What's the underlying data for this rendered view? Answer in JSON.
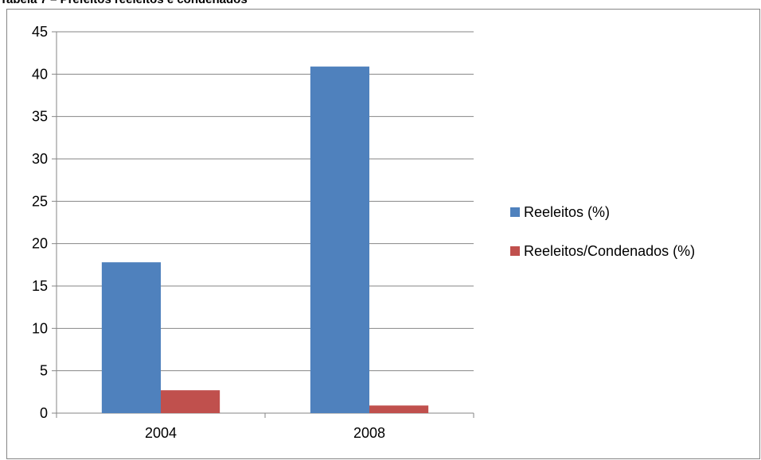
{
  "caption": "Tabela 7 – Prefeitos reeleitos e condenados",
  "chart_data": {
    "type": "bar",
    "title": "Tabela 7 – Prefeitos reeleitos e condenados",
    "xlabel": "",
    "ylabel": "",
    "categories": [
      "2004",
      "2008"
    ],
    "series": [
      {
        "name": "Reeleitos (%)",
        "values": [
          17.8,
          40.9
        ],
        "color": "#4f81bd"
      },
      {
        "name": "Reeleitos/Condenados (%)",
        "values": [
          2.7,
          0.9
        ],
        "color": "#c0504d"
      }
    ],
    "ylim": [
      0,
      45
    ],
    "yticks": [
      "0",
      "5",
      "10",
      "15",
      "20",
      "25",
      "30",
      "35",
      "40",
      "45"
    ],
    "grid": true,
    "legend_position": "right"
  }
}
